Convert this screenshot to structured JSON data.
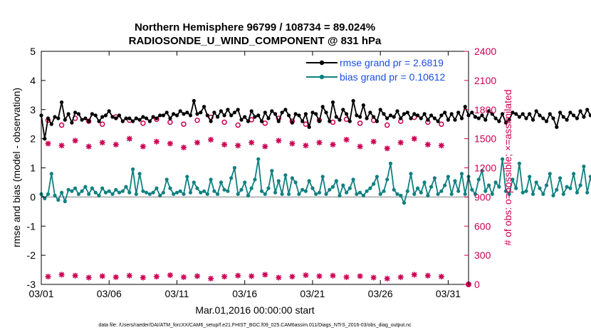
{
  "chart_data": {
    "type": "line",
    "title_lines": [
      "Northern Hemisphere 96799 / 108734 = 89.024%",
      "RADIOSONDE_U_WIND_COMPONENT @ 831 hPa"
    ],
    "xlabel": "Mar.01,2016 00:00:00 start",
    "ylabel_left": "rmse and bias (model - observation)",
    "ylabel_right": "# of obs: o=possible; ×=assimilated",
    "footer": "data file: /Users/raeder/DAI/ATM_forcXX/CAM6_setup/f.e21.FHIST_BGC.f09_025.CAM6assim.011/Diags_NTrS_2016-03/obs_diag_output.nc",
    "xlim": [
      0,
      31.5
    ],
    "ylim_left": [
      -3,
      5
    ],
    "ylim_right": [
      0,
      2400
    ],
    "x_tick_values": [
      0,
      5,
      10,
      15,
      20,
      25,
      30
    ],
    "x_tick_labels": [
      "03/01",
      "03/06",
      "03/11",
      "03/16",
      "03/21",
      "03/26",
      "03/31"
    ],
    "y_left_ticks": [
      -3,
      -2,
      -1,
      0,
      1,
      2,
      3,
      4,
      5
    ],
    "y_right_ticks": [
      0,
      300,
      600,
      900,
      1200,
      1500,
      1800,
      2100,
      2400
    ],
    "grid": false,
    "zero_line": true,
    "legend_position": "top-right",
    "colors": {
      "rmse": "#000000",
      "bias": "#108080",
      "obs": "#cc0052",
      "legend_text": "#1a4de6",
      "zero_line": "#a6a6a6",
      "right_axis": "#cc0052"
    },
    "x_step_days": 0.25,
    "series": [
      {
        "name": "rmse grand pr = 2.6819",
        "axis": "left",
        "values": [
          2.8,
          2.0,
          2.7,
          2.5,
          2.75,
          2.7,
          3.25,
          2.65,
          2.85,
          2.55,
          2.9,
          2.85,
          2.65,
          2.7,
          2.6,
          2.85,
          2.8,
          2.6,
          2.75,
          2.8,
          2.95,
          2.75,
          2.7,
          2.8,
          2.6,
          2.7,
          2.7,
          2.6,
          2.7,
          2.65,
          2.75,
          2.7,
          2.6,
          2.75,
          2.7,
          2.8,
          2.8,
          2.9,
          2.7,
          2.85,
          2.8,
          2.95,
          2.85,
          2.9,
          2.8,
          3.3,
          2.85,
          2.9,
          3.1,
          2.8,
          2.6,
          2.9,
          2.75,
          2.95,
          2.8,
          3.0,
          2.8,
          2.9,
          3.0,
          2.65,
          2.75,
          2.6,
          2.95,
          2.75,
          2.8,
          2.6,
          2.9,
          2.7,
          2.95,
          2.85,
          2.6,
          2.9,
          3.0,
          2.8,
          2.55,
          2.85,
          2.8,
          2.6,
          2.85,
          2.4,
          2.9,
          2.85,
          2.6,
          3.1,
          2.9,
          2.6,
          3.25,
          2.75,
          2.65,
          3.0,
          2.85,
          2.6,
          3.3,
          2.8,
          2.75,
          3.15,
          2.7,
          2.9,
          2.75,
          2.6,
          3.0,
          2.85,
          2.7,
          2.8,
          2.75,
          2.95,
          2.7,
          2.85,
          2.9,
          2.7,
          2.85,
          2.8,
          2.7,
          2.85,
          2.65,
          2.8,
          2.7,
          2.6,
          2.8,
          2.9,
          2.65,
          2.85,
          2.65,
          2.9,
          2.7,
          3.1,
          2.8,
          2.9,
          2.75,
          2.7,
          2.8,
          2.65,
          2.95,
          2.85,
          2.7,
          2.6,
          2.85,
          2.55,
          2.65,
          2.9,
          2.85,
          2.75,
          2.85,
          2.7,
          2.85,
          2.65,
          2.95,
          2.8,
          2.7,
          2.6,
          2.85,
          2.7,
          2.4,
          2.9,
          2.75,
          2.65,
          2.9,
          2.8,
          2.7,
          2.95,
          2.75,
          3.0,
          2.8,
          2.9,
          2.7,
          2.95,
          2.8,
          2.75,
          2.9,
          2.8,
          3.0,
          2.7,
          2.85,
          2.85,
          2.7,
          2.75,
          2.6,
          2.8,
          2.7,
          2.9,
          2.75,
          2.8,
          2.65,
          2.75,
          2.85,
          2.75,
          2.9,
          2.8,
          2.75,
          2.65,
          2.75,
          2.65,
          2.85,
          2.7,
          2.9,
          2.7,
          2.85,
          2.75,
          2.9,
          2.85,
          2.7,
          2.65,
          2.8,
          2.75,
          2.8,
          2.65,
          2.95,
          2.8,
          2.75,
          2.7,
          2.65,
          2.85,
          2.75,
          2.9,
          2.7,
          2.85,
          2.65,
          2.7,
          2.75,
          2.8,
          2.7,
          2.85,
          2.7,
          2.75,
          2.85,
          2.7,
          2.6,
          2.75,
          2.85,
          2.8,
          2.9,
          2.75,
          2.8,
          2.7,
          2.9,
          2.75,
          2.8,
          2.7,
          2.85,
          2.75,
          2.7,
          2.8,
          2.9,
          2.85,
          2.7,
          2.75,
          2.8,
          2.65,
          2.75,
          2.7,
          2.8,
          2.7,
          2.75,
          2.8,
          2.7,
          2.75,
          2.85,
          2.7,
          2.65,
          2.9,
          2.8,
          2.75,
          2.7,
          2.85,
          2.8,
          2.75,
          2.7
        ]
      },
      {
        "name": "bias grand pr = 0.10612",
        "axis": "left",
        "values": [
          0.1,
          -0.05,
          0.1,
          0.8,
          0.05,
          -0.1,
          0.15,
          -0.15,
          0.25,
          0.2,
          0.3,
          0.1,
          0.2,
          0.35,
          0.1,
          0.3,
          0.15,
          0.05,
          0.3,
          0.15,
          0.2,
          0.1,
          0.25,
          0.15,
          0.2,
          0.35,
          0.15,
          0.95,
          0.1,
          0.8,
          0.2,
          0.15,
          0.1,
          0.15,
          0.3,
          0.05,
          0.15,
          0.6,
          0.3,
          0.1,
          0.15,
          0.2,
          0.1,
          0.7,
          0.15,
          0.5,
          0.3,
          0.15,
          0.2,
          0.1,
          0.6,
          0.2,
          0.1,
          0.5,
          0.25,
          0.2,
          0.65,
          1.0,
          0.1,
          0.25,
          0.5,
          0.05,
          0.3,
          0.6,
          1.3,
          0.2,
          0.1,
          0.3,
          0.9,
          0.15,
          0.55,
          0.1,
          0.75,
          0.1,
          0.65,
          0.5,
          0.1,
          0.25,
          0.2,
          0.55,
          0.3,
          0.1,
          0.15,
          0.7,
          0.1,
          0.25,
          0.35,
          0.55,
          0.05,
          0.4,
          0.15,
          0.3,
          0.6,
          0.1,
          0.15,
          0.05,
          0.2,
          0.3,
          0.45,
          0.7,
          0.1,
          0.2,
          0.6,
          1.15,
          0.25,
          0.1,
          0.05,
          -0.2,
          0.2,
          0.8,
          0.1,
          0.3,
          0.15,
          0.5,
          0.05,
          0.35,
          0.65,
          0.1,
          0.2,
          0.4,
          0.7,
          0.1,
          0.55,
          0.2,
          0.8,
          0.1,
          0.7,
          0.25,
          0.1,
          0.6,
          0.9,
          0.2,
          0.4,
          0.1,
          0.5,
          0.35,
          1.3,
          0.2,
          0.1,
          0.6,
          0.3,
          1.15,
          0.15,
          0.2,
          0.7,
          0.1,
          0.5,
          0.3,
          0.1,
          0.4,
          0.8,
          0.05,
          0.25,
          0.65,
          0.1,
          0.35,
          0.3,
          0.8,
          0.15,
          0.4,
          1.05,
          0.15,
          0.7,
          0.1,
          0.9,
          0.3,
          0.2,
          0.85,
          0.1,
          0.95,
          0.2,
          0.1,
          1.0,
          0.3,
          0.8,
          0.4,
          1.0,
          0.1,
          0.5,
          0.3,
          0.85,
          0.1,
          0.7,
          0.15,
          1.05,
          0.3,
          0.15,
          0.95,
          0.2,
          0.7,
          0.1,
          0.6,
          0.2,
          0.1,
          0.5,
          -0.1,
          0.1,
          0.3,
          0.2,
          0.05,
          0.3,
          0.1,
          0.35,
          0.15,
          0.3,
          0.1,
          0.2,
          0.1,
          0.15,
          0.4,
          0.2,
          0.1,
          0.3,
          0.05,
          0.15,
          0.3,
          0.25,
          0.1,
          0.2,
          -0.1,
          0.2,
          0.1,
          0.3,
          -0.15,
          0.15,
          0.05,
          0.5,
          0.2,
          -0.05,
          0.3,
          0.1,
          0.2,
          -0.1,
          0.3,
          0.1,
          0.45,
          0.15,
          0.1,
          0.2,
          0.4,
          0.3,
          0.05,
          -0.25,
          0.5,
          0.3,
          0.15,
          0.05,
          0.6,
          0.1,
          0.2,
          0.05,
          0.65,
          0.1,
          0.4,
          0.3,
          0.15,
          0.7,
          0.1,
          0.35,
          0.2,
          0.1,
          0.55,
          0.3,
          1.4,
          0.2,
          0.1,
          0.5,
          0.3,
          0.05,
          0.2,
          0.15,
          -0.1,
          0.1,
          0.3,
          0.25,
          0.2,
          0.35,
          0.1,
          0.55,
          0.5
        ]
      },
      {
        "name": "obs possible",
        "axis": "right",
        "marker": "circle",
        "values": [
          1690,
          1640,
          1710,
          1680,
          1650,
          1725,
          1690,
          1660,
          1700,
          1670,
          1650,
          1690,
          1720,
          1670,
          1640,
          1695,
          1660,
          1710,
          1680,
          1650,
          1690,
          1670,
          1700,
          1660,
          1690,
          1640,
          1680,
          1720,
          1670,
          1650
        ]
      },
      {
        "name": "obs assimilated",
        "axis": "right",
        "marker": "asterisk",
        "values": [
          1450,
          1430,
          1480,
          1420,
          1460,
          1440,
          1500,
          1420,
          1470,
          1450,
          1410,
          1460,
          1490,
          1440,
          1430,
          1460,
          1420,
          1480,
          1450,
          1430,
          1460,
          1440,
          1490,
          1420,
          1470,
          1400,
          1460,
          1500,
          1440,
          1430
        ]
      },
      {
        "name": "obs low",
        "axis": "right",
        "marker": "asterisk",
        "values": [
          80,
          100,
          90,
          70,
          85,
          75,
          90,
          70,
          80,
          95,
          75,
          85,
          60,
          80,
          90,
          85,
          100,
          70,
          80,
          95,
          85,
          90,
          75,
          85,
          70,
          60,
          75,
          100,
          90,
          80
        ]
      }
    ]
  },
  "legend": {
    "rmse_label": "rmse grand pr = 2.6819",
    "bias_label": "bias grand pr = 0.10612"
  }
}
